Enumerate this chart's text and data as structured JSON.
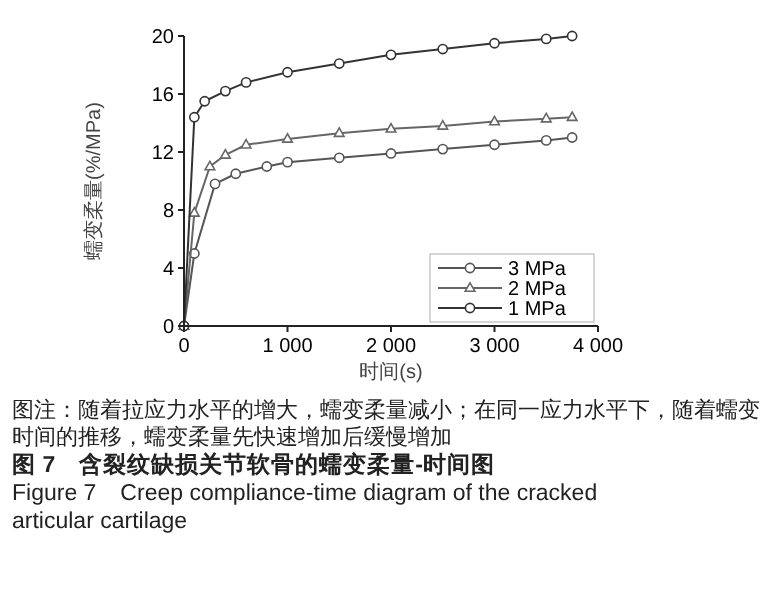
{
  "chart_data": {
    "type": "line",
    "title": "图 7　含裂纹缺损关节软骨的蠕变柔量-时间图",
    "subtitle": "Figure 7　Creep compliance-time diagram of the cracked articular cartilage",
    "xlabel": "时间(s)",
    "ylabel": "蠕变柔量(%/MPa)",
    "annotations": [
      "图注：随着拉应力水平的增大，蠕变柔量减小；在同一应力水平下，随着蠕变时间的推移，蠕变柔量先快速增加后缓慢增加"
    ],
    "xlim": [
      0,
      4000
    ],
    "xticks": [
      {
        "value": 0,
        "label": "0"
      },
      {
        "value": 1000,
        "label": "1 000"
      },
      {
        "value": 2000,
        "label": "2 000"
      },
      {
        "value": 3000,
        "label": "3 000"
      },
      {
        "value": 4000,
        "label": "4 000"
      }
    ],
    "ylim": [
      0,
      20
    ],
    "yticks": [
      0,
      4,
      8,
      12,
      16,
      20
    ],
    "grid": false,
    "legend": "bottom right",
    "line_style": "solid",
    "series": [
      {
        "name": "3 MPa",
        "color": "#555555",
        "marker": "circle",
        "x": [
          0,
          100,
          300,
          500,
          800,
          1000,
          1500,
          2000,
          2500,
          3000,
          3500,
          3750
        ],
        "values": [
          0,
          5,
          9.8,
          10.5,
          11,
          11.3,
          11.6,
          11.9,
          12.2,
          12.5,
          12.8,
          13
        ]
      },
      {
        "name": "2 MPa",
        "color": "#666666",
        "marker": "triangle",
        "x": [
          0,
          100,
          250,
          400,
          600,
          1000,
          1500,
          2000,
          2500,
          3000,
          3500,
          3750
        ],
        "values": [
          0,
          7.8,
          11,
          11.8,
          12.5,
          12.9,
          13.3,
          13.6,
          13.8,
          14.1,
          14.3,
          14.4
        ]
      },
      {
        "name": "1 MPa",
        "color": "#333333",
        "marker": "circle",
        "x": [
          0,
          100,
          200,
          400,
          600,
          1000,
          1500,
          2000,
          2500,
          3000,
          3500,
          3750
        ],
        "values": [
          0,
          14.4,
          15.5,
          16.2,
          16.8,
          17.5,
          18.1,
          18.7,
          19.1,
          19.5,
          19.8,
          20
        ]
      }
    ]
  }
}
